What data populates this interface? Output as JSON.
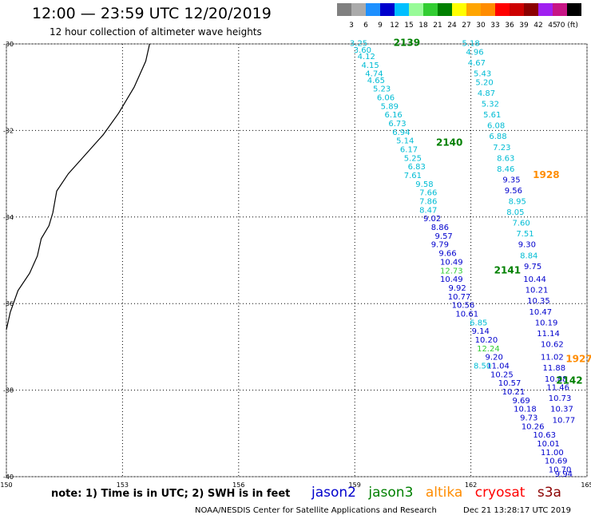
{
  "header": {
    "title": "12:00 — 23:59 UTC 12/20/2019",
    "subtitle": "12 hour collection of altimeter wave heights"
  },
  "legend": {
    "colors": [
      "#808080",
      "#aaaaaa",
      "#1e90ff",
      "#0000cd",
      "#00bfff",
      "#98fb98",
      "#32cd32",
      "#008000",
      "#ffff00",
      "#ffa500",
      "#ff8c00",
      "#ff0000",
      "#cd0000",
      "#8b0000",
      "#a020f0",
      "#c71585",
      "#000000"
    ],
    "labels": [
      "3",
      "6",
      "9",
      "12",
      "15",
      "18",
      "21",
      "24",
      "27",
      "30",
      "33",
      "36",
      "39",
      "42",
      "45",
      "70 (ft)"
    ]
  },
  "axes": {
    "lat_labels": [
      "-30",
      "-32",
      "-34",
      "-36",
      "-38",
      "-40"
    ],
    "lon_labels": [
      "150",
      "153",
      "156",
      "159",
      "162",
      "165"
    ]
  },
  "chart_data": {
    "type": "scatter",
    "xlim": [
      150,
      165
    ],
    "ylim": [
      -40,
      -30
    ],
    "grid": true,
    "pass_labels": [
      {
        "text": "2139",
        "lon": 160.0,
        "lat": -30.05,
        "color": "#008000"
      },
      {
        "text": "2140",
        "lon": 161.1,
        "lat": -32.35,
        "color": "#008000"
      },
      {
        "text": "1928",
        "lon": 163.6,
        "lat": -33.1,
        "color": "#ff8c00"
      },
      {
        "text": "2141",
        "lon": 162.6,
        "lat": -35.3,
        "color": "#008000"
      },
      {
        "text": "1927",
        "lon": 164.45,
        "lat": -37.35,
        "color": "#ff8c00"
      },
      {
        "text": "2142",
        "lon": 164.2,
        "lat": -37.85,
        "color": "#008000"
      }
    ],
    "tracks": [
      {
        "color": "#00bcd4",
        "points": [
          {
            "lon": 159.1,
            "lat": -30.05,
            "v": "3.25"
          },
          {
            "lon": 159.2,
            "lat": -30.2,
            "v": "3.60"
          },
          {
            "lon": 159.3,
            "lat": -30.35,
            "v": "4.12"
          },
          {
            "lon": 159.4,
            "lat": -30.55,
            "v": "4.15"
          },
          {
            "lon": 159.5,
            "lat": -30.75,
            "v": "4.74"
          },
          {
            "lon": 159.55,
            "lat": -30.9,
            "v": "4.65"
          },
          {
            "lon": 159.7,
            "lat": -31.1,
            "v": "5.23"
          },
          {
            "lon": 159.8,
            "lat": -31.3,
            "v": "6.06"
          },
          {
            "lon": 159.9,
            "lat": -31.5,
            "v": "5.89"
          },
          {
            "lon": 160.0,
            "lat": -31.7,
            "v": "6.16"
          },
          {
            "lon": 160.1,
            "lat": -31.9,
            "v": "6.73"
          },
          {
            "lon": 160.2,
            "lat": -32.1,
            "v": "6.94"
          },
          {
            "lon": 160.3,
            "lat": -32.3,
            "v": "5.14"
          },
          {
            "lon": 160.4,
            "lat": -32.5,
            "v": "6.17"
          },
          {
            "lon": 160.5,
            "lat": -32.7,
            "v": "5.25"
          },
          {
            "lon": 160.6,
            "lat": -32.9,
            "v": "6.83"
          },
          {
            "lon": 160.5,
            "lat": -33.1,
            "v": "7.61"
          },
          {
            "lon": 160.8,
            "lat": -33.3,
            "v": "9.58"
          },
          {
            "lon": 160.9,
            "lat": -33.5,
            "v": "7.66"
          },
          {
            "lon": 160.9,
            "lat": -33.7,
            "v": "7.86"
          },
          {
            "lon": 160.9,
            "lat": -33.9,
            "v": "8.47"
          }
        ]
      },
      {
        "color": "#0000cd",
        "points": [
          {
            "lon": 161.0,
            "lat": -34.1,
            "v": "9.02"
          },
          {
            "lon": 161.2,
            "lat": -34.3,
            "v": "8.86"
          },
          {
            "lon": 161.3,
            "lat": -34.5,
            "v": "9.57"
          },
          {
            "lon": 161.2,
            "lat": -34.7,
            "v": "9.79"
          },
          {
            "lon": 161.4,
            "lat": -34.9,
            "v": "9.66"
          },
          {
            "lon": 161.5,
            "lat": -35.1,
            "v": "10.49"
          },
          {
            "lon": 161.5,
            "lat": -35.5,
            "v": "10.49"
          },
          {
            "lon": 161.65,
            "lat": -35.7,
            "v": "9.92"
          },
          {
            "lon": 161.7,
            "lat": -35.9,
            "v": "10.77"
          },
          {
            "lon": 161.8,
            "lat": -36.1,
            "v": "10.56"
          },
          {
            "lon": 161.9,
            "lat": -36.3,
            "v": "10.61"
          },
          {
            "lon": 162.4,
            "lat": -36.9,
            "v": "10.20"
          },
          {
            "lon": 162.6,
            "lat": -37.3,
            "v": "9.20"
          },
          {
            "lon": 162.7,
            "lat": -37.5,
            "v": "11.04"
          },
          {
            "lon": 162.8,
            "lat": -37.7,
            "v": "10.25"
          },
          {
            "lon": 163.0,
            "lat": -37.9,
            "v": "10.57"
          },
          {
            "lon": 163.1,
            "lat": -38.1,
            "v": "10.21"
          },
          {
            "lon": 163.3,
            "lat": -38.3,
            "v": "9.69"
          },
          {
            "lon": 163.4,
            "lat": -38.5,
            "v": "10.18"
          },
          {
            "lon": 163.5,
            "lat": -38.7,
            "v": "9.73"
          },
          {
            "lon": 163.6,
            "lat": -38.9,
            "v": "10.26"
          },
          {
            "lon": 163.9,
            "lat": -39.1,
            "v": "10.63"
          },
          {
            "lon": 164.0,
            "lat": -39.3,
            "v": "10.01"
          },
          {
            "lon": 164.1,
            "lat": -39.5,
            "v": "11.00"
          },
          {
            "lon": 164.2,
            "lat": -39.7,
            "v": "10.69"
          },
          {
            "lon": 164.3,
            "lat": -39.9,
            "v": "10.70"
          },
          {
            "lon": 164.4,
            "lat": -40.0,
            "v": "9.94"
          }
        ]
      },
      {
        "color": "#00bcd4",
        "points": [
          {
            "lon": 162.2,
            "lat": -36.5,
            "v": "6.85"
          },
          {
            "lon": 162.3,
            "lat": -37.5,
            "v": "8.50"
          }
        ]
      },
      {
        "color": "#0000cd",
        "points": [
          {
            "lon": 162.25,
            "lat": -36.7,
            "v": "9.14"
          }
        ]
      },
      {
        "color": "#32cd32",
        "points": [
          {
            "lon": 161.5,
            "lat": -35.3,
            "v": "12.73"
          },
          {
            "lon": 162.45,
            "lat": -37.1,
            "v": "12.24"
          }
        ]
      },
      {
        "color": "#00bcd4",
        "points": [
          {
            "lon": 162.0,
            "lat": -30.05,
            "v": "5.18"
          },
          {
            "lon": 162.1,
            "lat": -30.25,
            "v": "4.96"
          },
          {
            "lon": 162.15,
            "lat": -30.5,
            "v": "4.67"
          },
          {
            "lon": 162.3,
            "lat": -30.75,
            "v": "5.43"
          },
          {
            "lon": 162.35,
            "lat": -30.95,
            "v": "5.20"
          },
          {
            "lon": 162.4,
            "lat": -31.2,
            "v": "4.87"
          },
          {
            "lon": 162.5,
            "lat": -31.45,
            "v": "5.32"
          },
          {
            "lon": 162.55,
            "lat": -31.7,
            "v": "5.61"
          },
          {
            "lon": 162.65,
            "lat": -31.95,
            "v": "6.08"
          },
          {
            "lon": 162.7,
            "lat": -32.2,
            "v": "6.88"
          },
          {
            "lon": 162.8,
            "lat": -32.45,
            "v": "7.23"
          },
          {
            "lon": 162.9,
            "lat": -32.7,
            "v": "8.63"
          },
          {
            "lon": 162.9,
            "lat": -32.95,
            "v": "8.46"
          }
        ]
      },
      {
        "color": "#0000cd",
        "points": [
          {
            "lon": 163.05,
            "lat": -33.2,
            "v": "9.35"
          },
          {
            "lon": 163.1,
            "lat": -33.45,
            "v": "9.56"
          }
        ]
      },
      {
        "color": "#00bcd4",
        "points": [
          {
            "lon": 163.2,
            "lat": -33.7,
            "v": "8.95"
          },
          {
            "lon": 163.15,
            "lat": -33.95,
            "v": "8.05"
          },
          {
            "lon": 163.3,
            "lat": -34.2,
            "v": "7.60"
          },
          {
            "lon": 163.4,
            "lat": -34.45,
            "v": "7.51"
          }
        ]
      },
      {
        "color": "#0000cd",
        "points": [
          {
            "lon": 163.45,
            "lat": -34.7,
            "v": "9.30"
          }
        ]
      },
      {
        "color": "#00bcd4",
        "points": [
          {
            "lon": 163.5,
            "lat": -34.95,
            "v": "8.84"
          }
        ]
      },
      {
        "color": "#0000cd",
        "points": [
          {
            "lon": 163.6,
            "lat": -35.2,
            "v": "9.75"
          },
          {
            "lon": 163.65,
            "lat": -35.5,
            "v": "10.44"
          },
          {
            "lon": 163.7,
            "lat": -35.75,
            "v": "10.21"
          },
          {
            "lon": 163.75,
            "lat": -36.0,
            "v": "10.35"
          },
          {
            "lon": 163.8,
            "lat": -36.25,
            "v": "10.47"
          },
          {
            "lon": 163.95,
            "lat": -36.5,
            "v": "10.19"
          },
          {
            "lon": 164.0,
            "lat": -36.75,
            "v": "11.14"
          },
          {
            "lon": 164.1,
            "lat": -37.0,
            "v": "10.62"
          },
          {
            "lon": 164.1,
            "lat": -37.3,
            "v": "11.02"
          },
          {
            "lon": 164.15,
            "lat": -37.55,
            "v": "11.88"
          },
          {
            "lon": 164.2,
            "lat": -37.8,
            "v": "10.88"
          },
          {
            "lon": 164.25,
            "lat": -38.0,
            "v": "11.46"
          },
          {
            "lon": 164.3,
            "lat": -38.25,
            "v": "10.73"
          },
          {
            "lon": 164.35,
            "lat": -38.5,
            "v": "10.37"
          },
          {
            "lon": 164.4,
            "lat": -38.75,
            "v": "10.77"
          }
        ]
      }
    ]
  },
  "footer": {
    "note": "note: 1) Time is in UTC; 2) SWH is in feet",
    "satellites": [
      {
        "name": "jason2",
        "color": "#0000cd"
      },
      {
        "name": "jason3",
        "color": "#008000"
      },
      {
        "name": "altika",
        "color": "#ff8c00"
      },
      {
        "name": "cryosat",
        "color": "#ff0000"
      },
      {
        "name": "s3a",
        "color": "#8b0000"
      }
    ],
    "credit": "NOAA/NESDIS Center for Satellite Applications and Research",
    "timestamp": "Dec 21 13:28:17 UTC 2019"
  }
}
